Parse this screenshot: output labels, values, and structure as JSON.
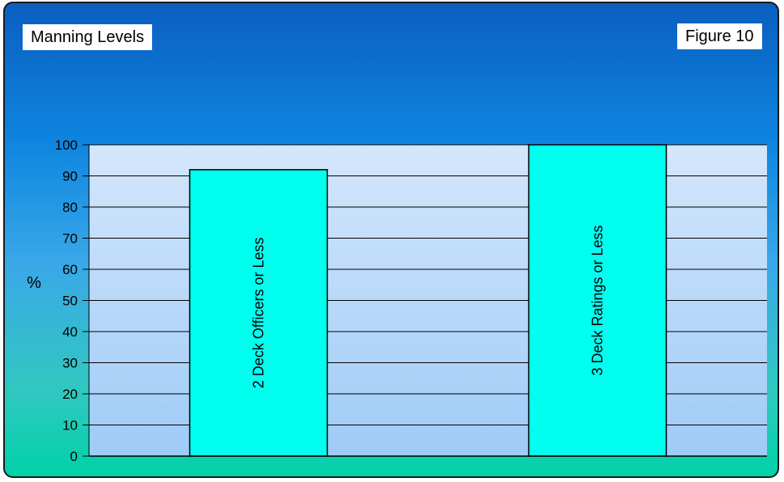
{
  "title": "Manning Levels",
  "figure_label": "Figure 10",
  "colors": {
    "bar_fill": "#00ffee",
    "bar_stroke": "#000000",
    "grid": "#000000"
  },
  "chart_data": {
    "type": "bar",
    "title": "Manning Levels",
    "ylabel": "%",
    "xlabel": "",
    "ylim": [
      0,
      100
    ],
    "yticks": [
      0,
      10,
      20,
      30,
      40,
      50,
      60,
      70,
      80,
      90,
      100
    ],
    "grid": true,
    "categories": [
      "2 Deck Officers or Less",
      "3 Deck Ratings or Less"
    ],
    "values": [
      92,
      100
    ],
    "bar_labels_vertical": true
  }
}
